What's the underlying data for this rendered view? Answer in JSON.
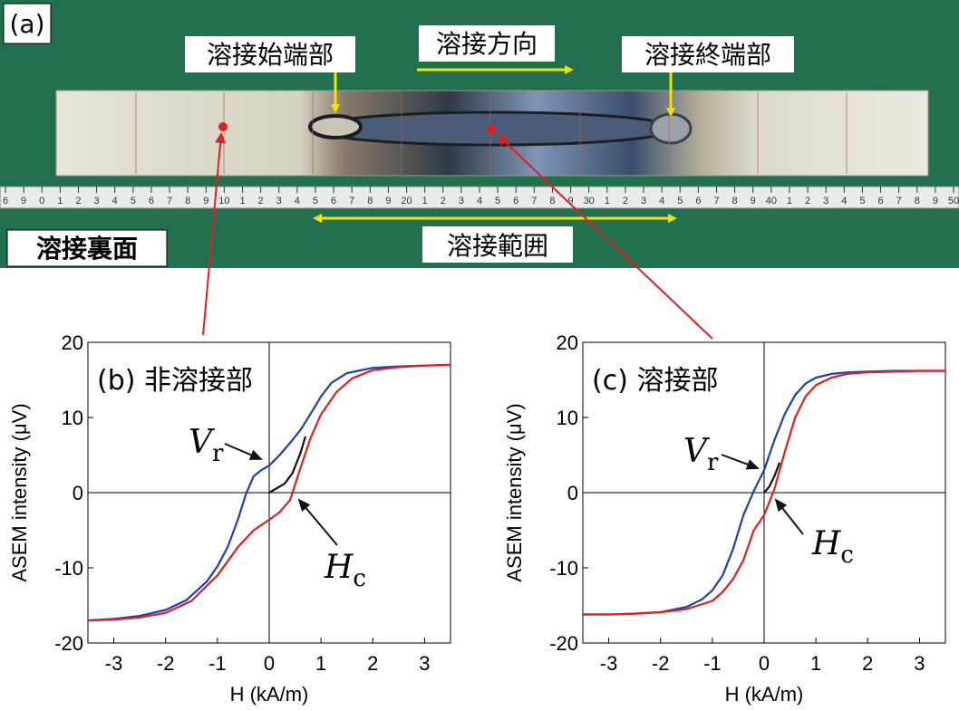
{
  "photo": {
    "panel_label": "(a)",
    "weld_start_label": "溶接始端部",
    "weld_direction_label": "溶接方向",
    "weld_end_label": "溶接終端部",
    "back_side_label": "溶接裏面",
    "weld_range_label": "溶接範囲",
    "ruler_numbers": [
      "6",
      "9",
      "0",
      "1",
      "2",
      "3",
      "4",
      "5",
      "6",
      "7",
      "8",
      "9",
      "10",
      "1",
      "2",
      "3",
      "4",
      "5",
      "6",
      "7",
      "8",
      "9",
      "20",
      "1",
      "2",
      "3",
      "4",
      "5",
      "6",
      "7",
      "8",
      "9",
      "30",
      "1",
      "2",
      "3",
      "4",
      "5",
      "6",
      "7",
      "8",
      "9",
      "40",
      "1",
      "2",
      "3",
      "4",
      "5",
      "6",
      "7",
      "8",
      "9",
      "50"
    ],
    "colors": {
      "background": "#1f6b4c",
      "arrow_yellow": "#f2e400",
      "marker_red": "#e02020",
      "plate": "#d9d6c9"
    }
  },
  "chart_data": [
    {
      "type": "line",
      "panel_label": "(b) 非溶接部",
      "xlabel": "H (kA/m)",
      "ylabel": "ASEM intensity (μV)",
      "xlim": [
        -3.5,
        3.5
      ],
      "ylim": [
        -20,
        20
      ],
      "xticks": [
        -3,
        -2,
        -1,
        0,
        1,
        2,
        3
      ],
      "yticks": [
        20,
        10,
        0,
        -10,
        -20
      ],
      "annotations": [
        {
          "text": "V",
          "sub": "r",
          "point": [
            0,
            3.5
          ]
        },
        {
          "text": "H",
          "sub": "c",
          "point": [
            0.5,
            0
          ]
        }
      ],
      "series": [
        {
          "color": "#1f3fb0",
          "x": [
            -3.5,
            -3.0,
            -2.5,
            -2.0,
            -1.6,
            -1.2,
            -1.0,
            -0.8,
            -0.6,
            -0.45,
            -0.3,
            -0.15,
            0,
            0.2,
            0.4,
            0.6,
            0.8,
            1.0,
            1.2,
            1.5,
            2.0,
            2.5,
            3.0,
            3.5
          ],
          "y": [
            -17.0,
            -16.8,
            -16.4,
            -15.6,
            -14.3,
            -11.8,
            -9.8,
            -7.2,
            -3.5,
            -0.2,
            2.2,
            3.0,
            3.6,
            5.0,
            6.6,
            8.3,
            10.5,
            12.8,
            14.6,
            15.9,
            16.6,
            16.8,
            16.9,
            17.0
          ]
        },
        {
          "color": "#e02020",
          "x": [
            -3.5,
            -3.0,
            -2.5,
            -2.0,
            -1.5,
            -1.0,
            -0.6,
            -0.3,
            0,
            0.2,
            0.4,
            0.6,
            0.8,
            1.0,
            1.3,
            1.6,
            2.0,
            2.5,
            3.0,
            3.5
          ],
          "y": [
            -17.0,
            -16.9,
            -16.6,
            -16.0,
            -14.4,
            -11.0,
            -7.2,
            -5.0,
            -3.6,
            -2.6,
            -1.0,
            3.2,
            7.3,
            10.4,
            13.4,
            15.2,
            16.3,
            16.7,
            16.9,
            17.0
          ]
        },
        {
          "color": "#111111",
          "x": [
            0,
            0.15,
            0.3,
            0.45,
            0.6,
            0.7
          ],
          "y": [
            0,
            0.6,
            1.2,
            2.6,
            5.2,
            7.5
          ]
        }
      ]
    },
    {
      "type": "line",
      "panel_label": "(c) 溶接部",
      "xlabel": "H (kA/m)",
      "ylabel": "ASEM intensity (μV)",
      "xlim": [
        -3.5,
        3.5
      ],
      "ylim": [
        -20,
        20
      ],
      "xticks": [
        -3,
        -2,
        -1,
        0,
        1,
        2,
        3
      ],
      "yticks": [
        20,
        10,
        0,
        -10,
        -20
      ],
      "annotations": [
        {
          "text": "V",
          "sub": "r",
          "point": [
            0,
            3.0
          ]
        },
        {
          "text": "H",
          "sub": "c",
          "point": [
            0.2,
            0
          ]
        }
      ],
      "series": [
        {
          "color": "#1f3fb0",
          "x": [
            -3.5,
            -3.0,
            -2.5,
            -2.0,
            -1.5,
            -1.2,
            -1.0,
            -0.8,
            -0.6,
            -0.4,
            -0.2,
            0,
            0.2,
            0.4,
            0.6,
            0.8,
            1.0,
            1.3,
            1.6,
            2.0,
            2.5,
            3.0,
            3.5
          ],
          "y": [
            -16.2,
            -16.2,
            -16.1,
            -15.9,
            -15.2,
            -14.2,
            -13.0,
            -11.0,
            -7.5,
            -3.0,
            0.2,
            3.0,
            7.0,
            10.5,
            13.0,
            14.5,
            15.3,
            15.8,
            16.0,
            16.1,
            16.2,
            16.2,
            16.2
          ]
        },
        {
          "color": "#e02020",
          "x": [
            -3.5,
            -3.0,
            -2.5,
            -2.0,
            -1.5,
            -1.0,
            -0.8,
            -0.6,
            -0.4,
            -0.2,
            0,
            0.2,
            0.4,
            0.6,
            0.8,
            1.0,
            1.3,
            1.6,
            2.0,
            2.5,
            3.0,
            3.5
          ],
          "y": [
            -16.2,
            -16.2,
            -16.1,
            -15.9,
            -15.5,
            -14.4,
            -13.2,
            -11.5,
            -9.0,
            -5.0,
            -3.0,
            0.5,
            5.5,
            10.0,
            12.8,
            14.3,
            15.3,
            15.8,
            16.0,
            16.1,
            16.2,
            16.2
          ]
        },
        {
          "color": "#111111",
          "x": [
            0,
            0.1,
            0.2,
            0.3
          ],
          "y": [
            0,
            0.8,
            2.2,
            4.0
          ]
        }
      ]
    }
  ]
}
